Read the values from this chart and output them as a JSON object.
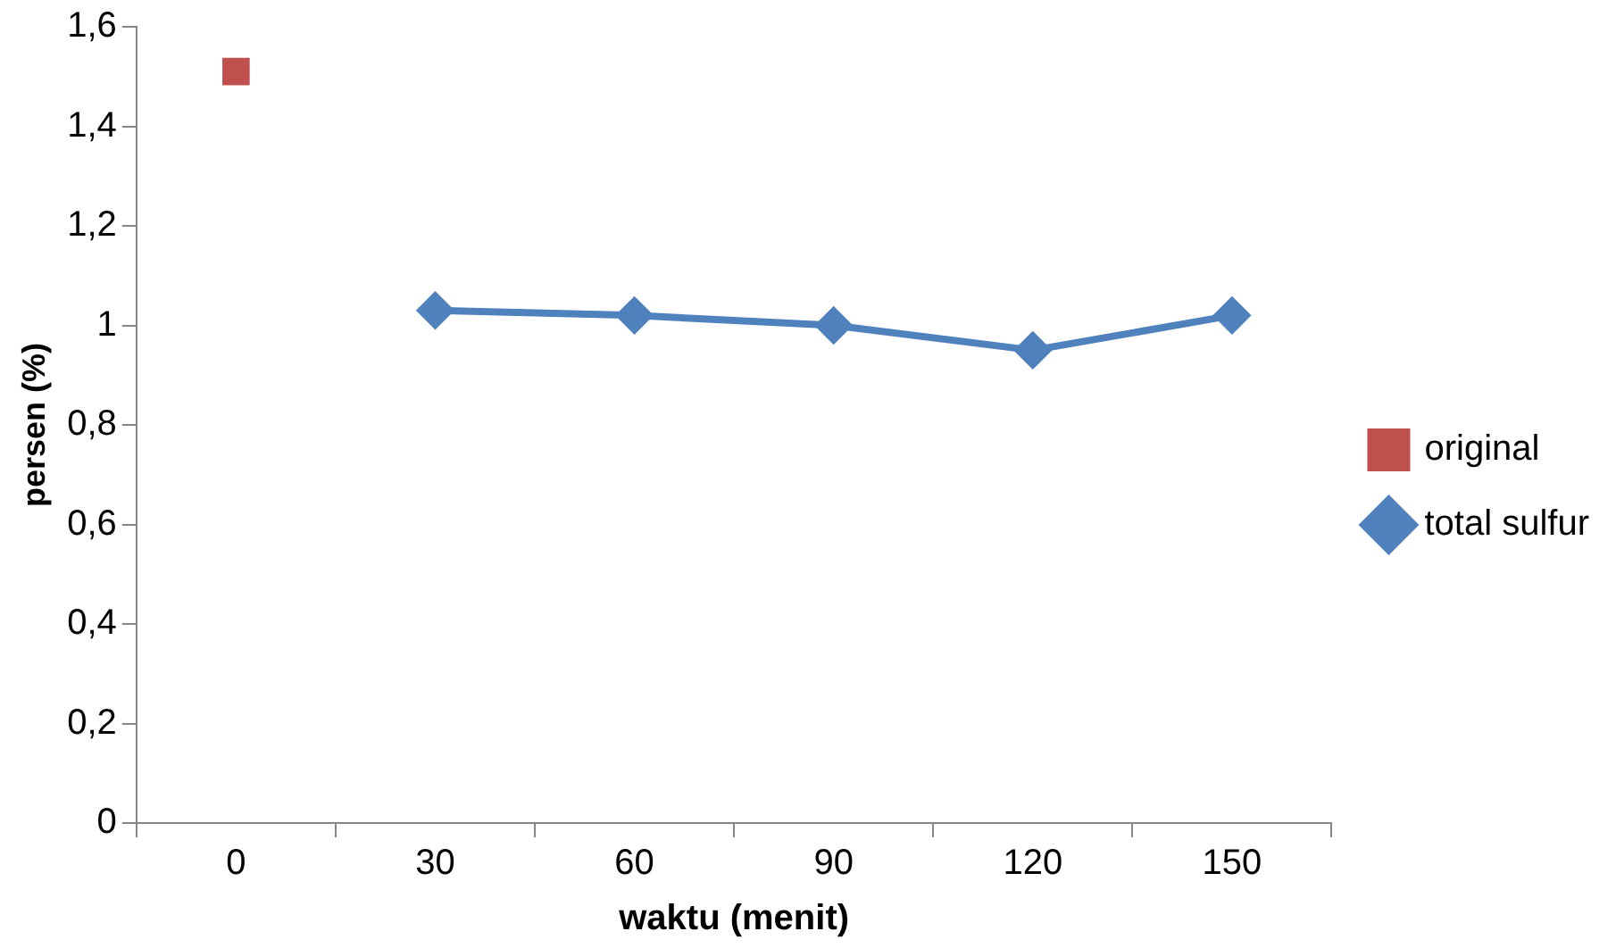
{
  "chart_data": {
    "type": "line",
    "xlabel": "waktu (menit)",
    "ylabel": "persen (%)",
    "categories": [
      "0",
      "30",
      "60",
      "90",
      "120",
      "150"
    ],
    "series": [
      {
        "name": "original",
        "color": "#c0504d",
        "marker": "square",
        "values": [
          1.51,
          null,
          null,
          null,
          null,
          null
        ]
      },
      {
        "name": "total sulfur",
        "color": "#4f81bd",
        "marker": "diamond",
        "values": [
          null,
          1.03,
          1.02,
          1.0,
          0.95,
          1.02
        ]
      }
    ],
    "ylim": [
      0,
      1.6
    ],
    "yticks": [
      {
        "value": 0,
        "label": "0"
      },
      {
        "value": 0.2,
        "label": "0,2"
      },
      {
        "value": 0.4,
        "label": "0,4"
      },
      {
        "value": 0.6,
        "label": "0,6"
      },
      {
        "value": 0.8,
        "label": "0,8"
      },
      {
        "value": 1,
        "label": "1"
      },
      {
        "value": 1.2,
        "label": "1,2"
      },
      {
        "value": 1.4,
        "label": "1,4"
      },
      {
        "value": 1.6,
        "label": "1,6"
      }
    ],
    "legend": "right"
  }
}
